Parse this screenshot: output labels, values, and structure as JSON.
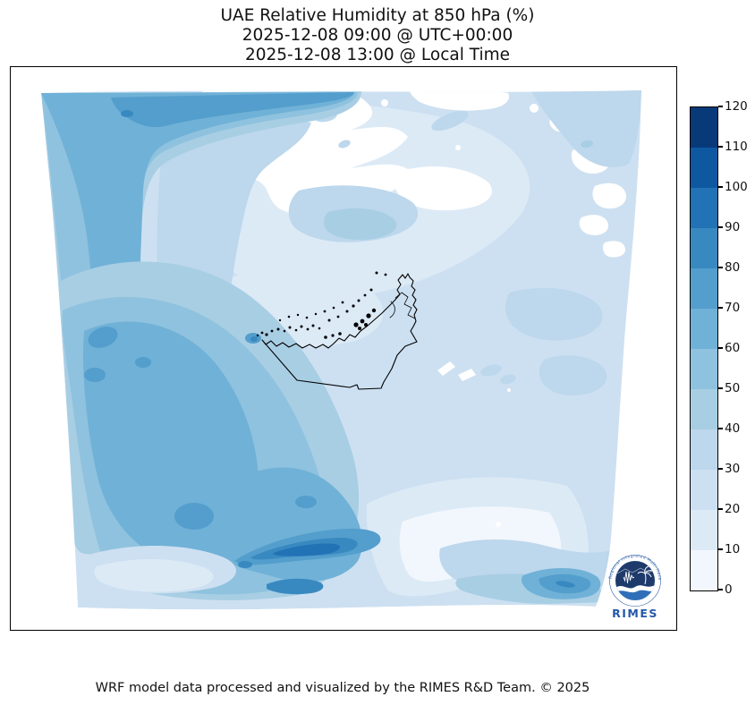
{
  "title": {
    "line1": "UAE Relative Humidity at 850 hPa (%)",
    "line2": "2025-12-08 09:00 @ UTC+00:00",
    "line3": "2025-12-08 13:00 @ Local Time"
  },
  "footer": "WRF model data processed and visualized by the RIMES R&D Team. © 2025",
  "colorbar": {
    "min": 0,
    "max": 120,
    "interval": 10,
    "ticks": [
      0,
      10,
      20,
      30,
      40,
      50,
      60,
      70,
      80,
      90,
      100,
      110,
      120
    ],
    "colors": [
      "#f2f7fd",
      "#dceaf6",
      "#cde0f1",
      "#bdd7ec",
      "#a8cee4",
      "#8fc2de",
      "#70b1d7",
      "#539ecc",
      "#3989c1",
      "#2272b6",
      "#0e58a2",
      "#083979"
    ],
    "orientation": "vertical",
    "position": "right"
  },
  "logo": {
    "ring_text": "Regional Integrated Multi-Hazard Early Warning System",
    "name": "RIMES",
    "brand_navy": "#1d3a6b",
    "brand_blue": "#2b5ca8",
    "wordmark_color": "#2458a6"
  },
  "frame": {
    "border_color": "#000000",
    "background": "#ffffff"
  },
  "chart_data": {
    "type": "heatmap",
    "subtype": "filled-contour weather map (WRF model domain)",
    "title": "UAE Relative Humidity at 850 hPa (%)",
    "valid_time_utc": "2025-12-08 09:00 @ UTC+00:00",
    "valid_time_local": "2025-12-08 13:00 @ Local Time",
    "variable": "Relative Humidity",
    "pressure_level_hPa": 850,
    "units": "%",
    "colorbar": {
      "levels": [
        0,
        10,
        20,
        30,
        40,
        50,
        60,
        70,
        80,
        90,
        100,
        110,
        120
      ],
      "colors": [
        "#f2f7fd",
        "#dceaf6",
        "#cde0f1",
        "#bdd7ec",
        "#a8cee4",
        "#8fc2de",
        "#70b1d7",
        "#539ecc",
        "#3989c1",
        "#2272b6",
        "#0e58a2",
        "#083979"
      ],
      "colormap": "Blues (12 discrete bins)",
      "legend_position": "right vertical colorbar"
    },
    "overlay": "UAE coastline and borders drawn in black with many small island dots; domain edges are slightly skewed (curvilinear WRF grid) on white background",
    "value_summary": {
      "uae_and_gulf_area": "mostly 10-30% with near-white 0-10% pockets",
      "north_of_uae": "large white very-dry wedge over the Gulf extending northeast",
      "west_and_southwest": "broad 40-70% moist region with 70-80% pockets",
      "bottom_center": "dark 80-100% streaks near the southern domain edge",
      "southeast": "pale 0-20% wedge with 30-50% wavy bands and an 80-90% streak near the bottom-right",
      "top_left_edge": "thin 70-90% band along the northwest domain edge"
    },
    "axes": "no lat/lon ticks shown; plain black rectangular frame",
    "branding": "RIMES circular logo at bottom-right inside the map frame"
  }
}
